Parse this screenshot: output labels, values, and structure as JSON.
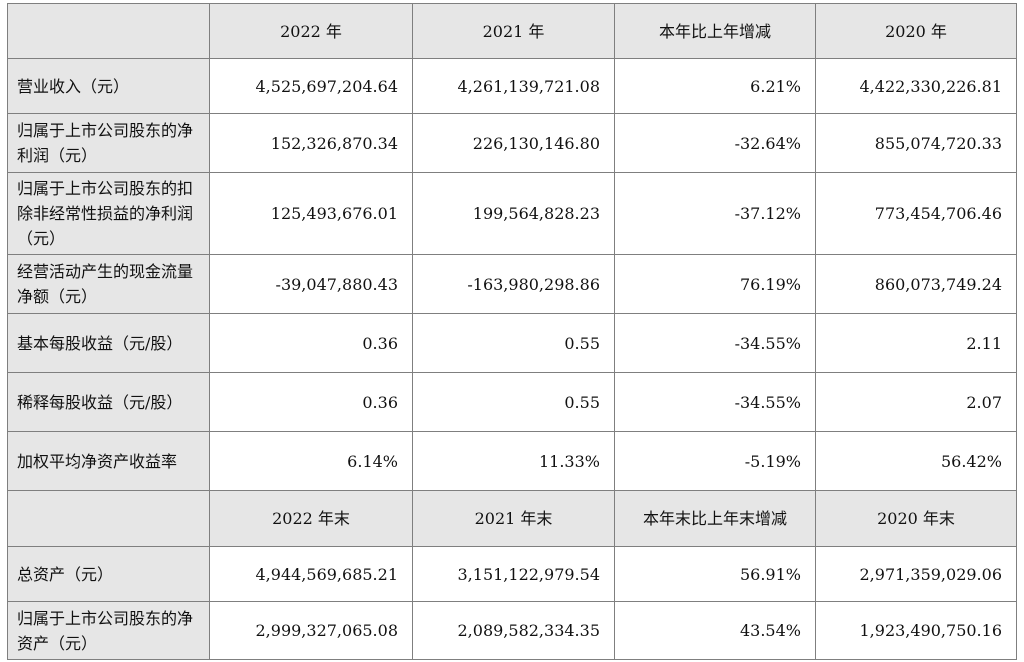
{
  "table": {
    "header1": [
      "",
      "2022 年",
      "2021 年",
      "本年比上年增减",
      "2020 年"
    ],
    "rows1": [
      {
        "label": "营业收入（元）",
        "values": [
          "4,525,697,204.64",
          "4,261,139,721.08",
          "6.21%",
          "4,422,330,226.81"
        ]
      },
      {
        "label": "归属于上市公司股东的净利润（元）",
        "values": [
          "152,326,870.34",
          "226,130,146.80",
          "-32.64%",
          "855,074,720.33"
        ]
      },
      {
        "label": "归属于上市公司股东的扣除非经常性损益的净利润（元）",
        "values": [
          "125,493,676.01",
          "199,564,828.23",
          "-37.12%",
          "773,454,706.46"
        ]
      },
      {
        "label": "经营活动产生的现金流量净额（元）",
        "values": [
          "-39,047,880.43",
          "-163,980,298.86",
          "76.19%",
          "860,073,749.24"
        ]
      },
      {
        "label": "基本每股收益（元/股）",
        "values": [
          "0.36",
          "0.55",
          "-34.55%",
          "2.11"
        ]
      },
      {
        "label": "稀释每股收益（元/股）",
        "values": [
          "0.36",
          "0.55",
          "-34.55%",
          "2.07"
        ]
      },
      {
        "label": "加权平均净资产收益率",
        "values": [
          "6.14%",
          "11.33%",
          "-5.19%",
          "56.42%"
        ]
      }
    ],
    "header2": [
      "",
      "2022 年末",
      "2021 年末",
      "本年末比上年末增减",
      "2020 年末"
    ],
    "rows2": [
      {
        "label": "总资产（元）",
        "values": [
          "4,944,569,685.21",
          "3,151,122,979.54",
          "56.91%",
          "2,971,359,029.06"
        ]
      },
      {
        "label": "归属于上市公司股东的净资产（元）",
        "values": [
          "2,999,327,065.08",
          "2,089,582,334.35",
          "43.54%",
          "1,923,490,750.16"
        ]
      }
    ]
  }
}
